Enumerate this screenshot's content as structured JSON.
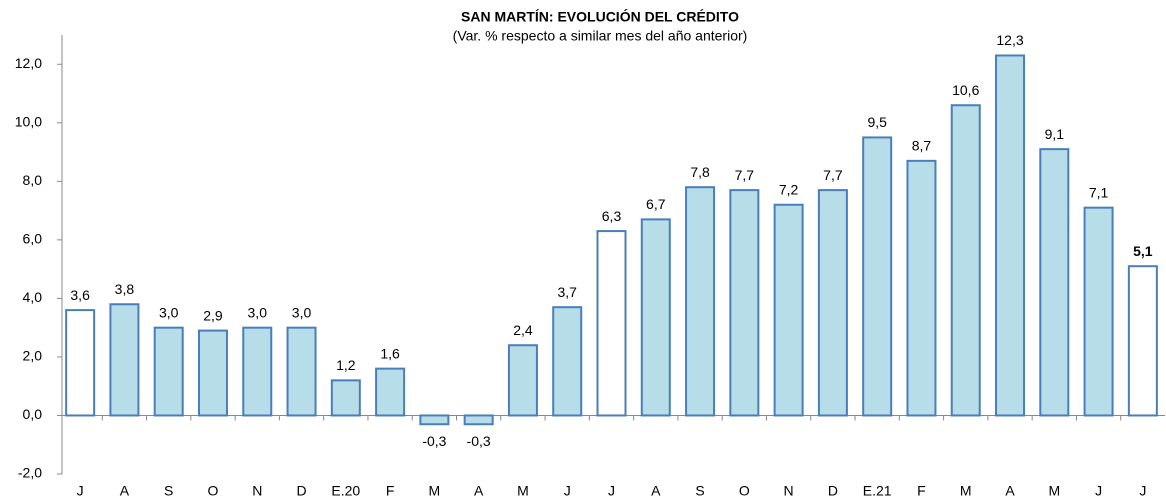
{
  "chart_data": {
    "type": "bar",
    "title": "SAN MARTÍN: EVOLUCIÓN DEL CRÉDITO",
    "subtitle": "(Var. % respecto a similar mes del año anterior)",
    "categories": [
      "J",
      "A",
      "S",
      "O",
      "N",
      "D",
      "E.20",
      "F",
      "M",
      "A",
      "M",
      "J",
      "J",
      "A",
      "S",
      "O",
      "N",
      "D",
      "E.21",
      "F",
      "M",
      "A",
      "M",
      "J",
      "J"
    ],
    "values": [
      3.6,
      3.8,
      3.0,
      2.9,
      3.0,
      3.0,
      1.2,
      1.6,
      -0.3,
      -0.3,
      2.4,
      3.7,
      6.3,
      6.7,
      7.8,
      7.7,
      7.2,
      7.7,
      9.5,
      8.7,
      10.6,
      12.3,
      9.1,
      7.1,
      5.1
    ],
    "value_labels": [
      "3,6",
      "3,8",
      "3,0",
      "2,9",
      "3,0",
      "3,0",
      "1,2",
      "1,6",
      "-0,3",
      "-0,3",
      "2,4",
      "3,7",
      "6,3",
      "6,7",
      "7,8",
      "7,7",
      "7,2",
      "7,7",
      "9,5",
      "8,7",
      "10,6",
      "12,3",
      "9,1",
      "7,1",
      "5,1"
    ],
    "colors": [
      "#ffffff",
      "#b7dde8",
      "#b7dde8",
      "#b7dde8",
      "#b7dde8",
      "#b7dde8",
      "#b7dde8",
      "#b7dde8",
      "#b7dde8",
      "#b7dde8",
      "#b7dde8",
      "#b7dde8",
      "#ffffff",
      "#b7dde8",
      "#b7dde8",
      "#b7dde8",
      "#b7dde8",
      "#b7dde8",
      "#b7dde8",
      "#b7dde8",
      "#b7dde8",
      "#b7dde8",
      "#b7dde8",
      "#b7dde8",
      "#ffffff"
    ],
    "edge_color": "#4a7ebb",
    "ylim": [
      -2,
      13
    ],
    "yticks": [
      {
        "value": -2,
        "label": "-2,0"
      },
      {
        "value": 0,
        "label": "0,0"
      },
      {
        "value": 2,
        "label": "2,0"
      },
      {
        "value": 4,
        "label": "4,0"
      },
      {
        "value": 6,
        "label": "6,0"
      },
      {
        "value": 8,
        "label": "8,0"
      },
      {
        "value": 10,
        "label": "10,0"
      },
      {
        "value": 12,
        "label": "12,0"
      }
    ],
    "grid": false
  }
}
